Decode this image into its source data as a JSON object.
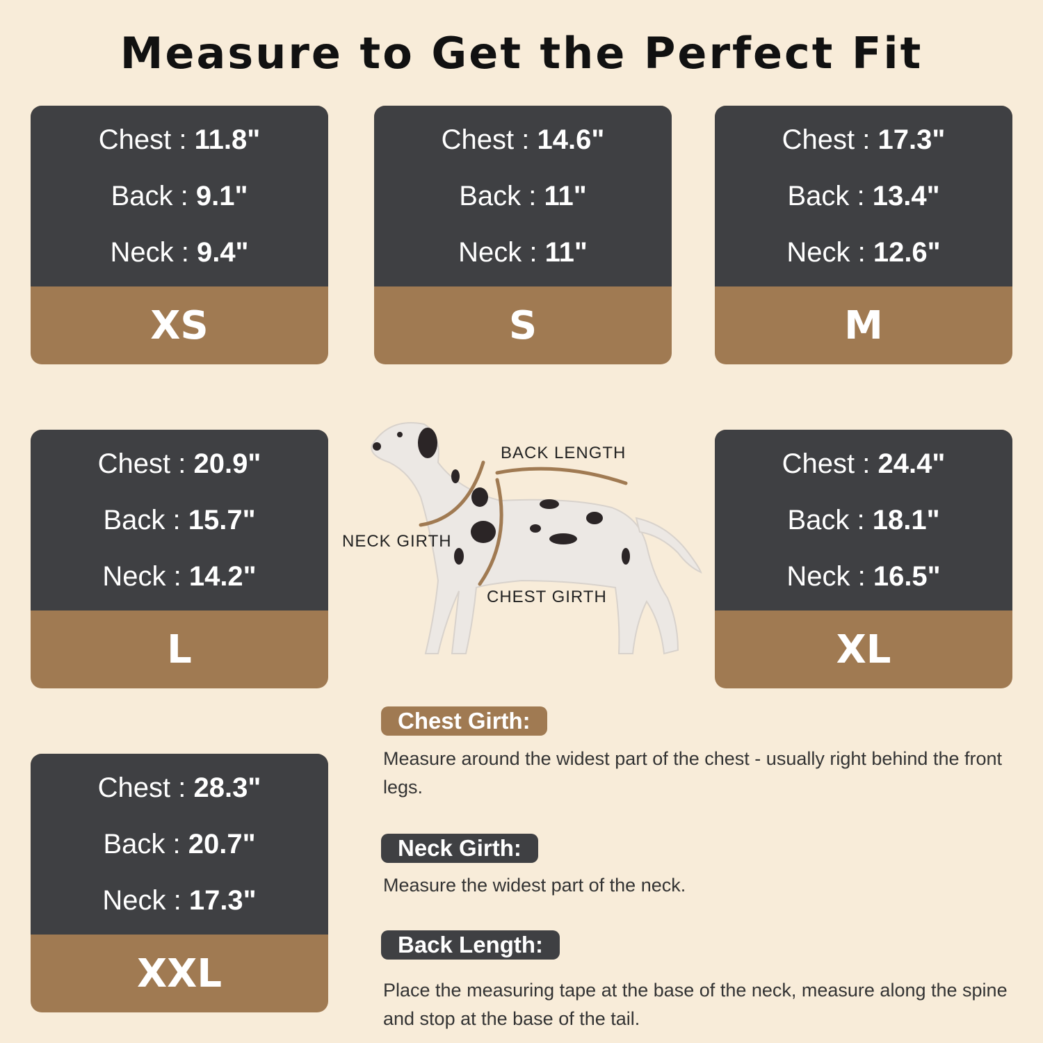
{
  "title": "Measure to Get the Perfect Fit",
  "sizes": [
    {
      "size": "XS",
      "chest": "Chest : ",
      "chest_val": "11.8\"",
      "back": "Back : ",
      "back_val": "9.1\"",
      "neck": "Neck : ",
      "neck_val": "9.4\""
    },
    {
      "size": "S",
      "chest": "Chest : ",
      "chest_val": "14.6\"",
      "back": "Back : ",
      "back_val": "11\"",
      "neck": "Neck : ",
      "neck_val": "11\""
    },
    {
      "size": "M",
      "chest": "Chest : ",
      "chest_val": "17.3\"",
      "back": "Back : ",
      "back_val": "13.4\"",
      "neck": "Neck : ",
      "neck_val": "12.6\""
    },
    {
      "size": "L",
      "chest": "Chest : ",
      "chest_val": "20.9\"",
      "back": "Back : ",
      "back_val": "15.7\"",
      "neck": "Neck : ",
      "neck_val": "14.2\""
    },
    {
      "size": "XL",
      "chest": "Chest : ",
      "chest_val": "24.4\"",
      "back": "Back : ",
      "back_val": "18.1\"",
      "neck": "Neck : ",
      "neck_val": "16.5\""
    },
    {
      "size": "XXL",
      "chest": "Chest : ",
      "chest_val": "28.3\"",
      "back": "Back : ",
      "back_val": "20.7\"",
      "neck": "Neck : ",
      "neck_val": "17.3\""
    }
  ],
  "diagram": {
    "back_length": "BACK LENGTH",
    "neck_girth": "NECK GIRTH",
    "chest_girth": "CHEST GIRTH"
  },
  "guide": [
    {
      "label": "Chest Girth:",
      "text": "Measure around the widest part of the chest - usually right behind the front legs."
    },
    {
      "label": "Neck Girth:",
      "text": "Measure the widest part of the neck."
    },
    {
      "label": "Back Length:",
      "text": "Place the measuring tape at the base of the neck, measure along the spine and stop at the base of the tail."
    }
  ],
  "colors": {
    "background": "#f8ecd9",
    "card_dark": "#3f4043",
    "card_accent": "#a07a52"
  }
}
